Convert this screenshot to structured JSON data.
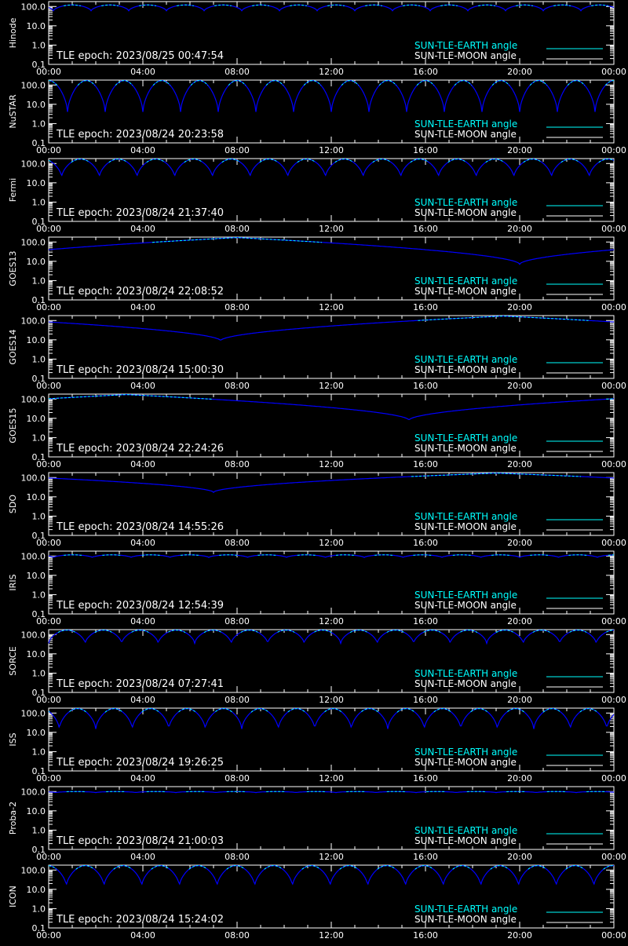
{
  "x_tick_labels": [
    "00:00",
    "04:00",
    "08:00",
    "12:00",
    "16:00",
    "20:00",
    "00:00"
  ],
  "y_tick_labels": [
    "100.0",
    "10.0",
    "1.0",
    "0.1"
  ],
  "legend": {
    "earth": "SUN-TLE-EARTH angle",
    "moon": "SUN-TLE-MOON angle"
  },
  "colors": {
    "background": "#000000",
    "axes": "#ffffff",
    "earth_series": "#00ffff",
    "moon_series": "#0000ff"
  },
  "chart_data": [
    {
      "type": "line",
      "ylabel": "Hinode",
      "title": "TLE epoch: 2023/08/25 00:47:54",
      "yscale": "log",
      "ylim": [
        0.1,
        180
      ],
      "xlim": [
        0,
        24
      ],
      "curve": {
        "kind": "periodic",
        "period_h": 1.6,
        "phase_h": 0.2,
        "min": 60,
        "max": 120
      }
    },
    {
      "type": "line",
      "ylabel": "NuSTAR",
      "title": "TLE epoch: 2023/08/24 20:23:58",
      "yscale": "log",
      "ylim": [
        0.1,
        180
      ],
      "xlim": [
        0,
        24
      ],
      "curve": {
        "kind": "periodic",
        "period_h": 1.6,
        "phase_h": 0.8,
        "min": 4,
        "max": 170
      }
    },
    {
      "type": "line",
      "ylabel": "Fermi",
      "title": "TLE epoch: 2023/08/24 21:37:40",
      "yscale": "log",
      "ylim": [
        0.1,
        180
      ],
      "xlim": [
        0,
        24
      ],
      "curve": {
        "kind": "periodic",
        "period_h": 1.6,
        "phase_h": 0.55,
        "min": 20,
        "max": 170
      }
    },
    {
      "type": "line",
      "ylabel": "GOES13",
      "title": "TLE epoch: 2023/08/24 22:08:52",
      "yscale": "log",
      "ylim": [
        0.1,
        180
      ],
      "xlim": [
        0,
        24
      ],
      "curve": {
        "kind": "daily",
        "min_at_h": 20.0,
        "min": 7,
        "max": 170
      }
    },
    {
      "type": "line",
      "ylabel": "GOES14",
      "title": "TLE epoch: 2023/08/24 15:00:30",
      "yscale": "log",
      "ylim": [
        0.1,
        180
      ],
      "xlim": [
        0,
        24
      ],
      "curve": {
        "kind": "daily",
        "min_at_h": 7.3,
        "min": 9,
        "max": 170
      }
    },
    {
      "type": "line",
      "ylabel": "GOES15",
      "title": "TLE epoch: 2023/08/24 22:24:26",
      "yscale": "log",
      "ylim": [
        0.1,
        180
      ],
      "xlim": [
        0,
        24
      ],
      "curve": {
        "kind": "daily",
        "min_at_h": 15.3,
        "min": 8,
        "max": 170
      }
    },
    {
      "type": "line",
      "ylabel": "SDO",
      "title": "TLE epoch: 2023/08/24 14:55:26",
      "yscale": "log",
      "ylim": [
        0.1,
        180
      ],
      "xlim": [
        0,
        24
      ],
      "curve": {
        "kind": "daily",
        "min_at_h": 7.0,
        "min": 17,
        "max": 170
      }
    },
    {
      "type": "line",
      "ylabel": "IRIS",
      "title": "TLE epoch: 2023/08/24 12:54:39",
      "yscale": "log",
      "ylim": [
        0.1,
        180
      ],
      "xlim": [
        0,
        24
      ],
      "curve": {
        "kind": "periodic",
        "period_h": 1.65,
        "phase_h": 0.2,
        "min": 85,
        "max": 115
      }
    },
    {
      "type": "line",
      "ylabel": "SORCE",
      "title": "TLE epoch: 2023/08/24 07:27:41",
      "yscale": "log",
      "ylim": [
        0.1,
        180
      ],
      "xlim": [
        0,
        24
      ],
      "curve": {
        "kind": "periodic",
        "period_h": 1.55,
        "phase_h": 0.0,
        "min": 35,
        "max": 170
      }
    },
    {
      "type": "line",
      "ylabel": "ISS",
      "title": "TLE epoch: 2023/08/24 19:26:25",
      "yscale": "log",
      "ylim": [
        0.1,
        180
      ],
      "xlim": [
        0,
        24
      ],
      "curve": {
        "kind": "periodic",
        "period_h": 1.55,
        "phase_h": 0.45,
        "min": 15,
        "max": 170
      }
    },
    {
      "type": "line",
      "ylabel": "Proba-2",
      "title": "TLE epoch: 2023/08/24 21:00:03",
      "yscale": "log",
      "ylim": [
        0.1,
        180
      ],
      "xlim": [
        0,
        24
      ],
      "curve": {
        "kind": "periodic",
        "period_h": 1.7,
        "phase_h": 0.3,
        "min": 88,
        "max": 100
      }
    },
    {
      "type": "line",
      "ylabel": "ICON",
      "title": "TLE epoch: 2023/08/24 15:24:02",
      "yscale": "log",
      "ylim": [
        0.1,
        180
      ],
      "xlim": [
        0,
        24
      ],
      "curve": {
        "kind": "periodic",
        "period_h": 1.6,
        "phase_h": 0.75,
        "min": 15,
        "max": 170
      }
    }
  ]
}
